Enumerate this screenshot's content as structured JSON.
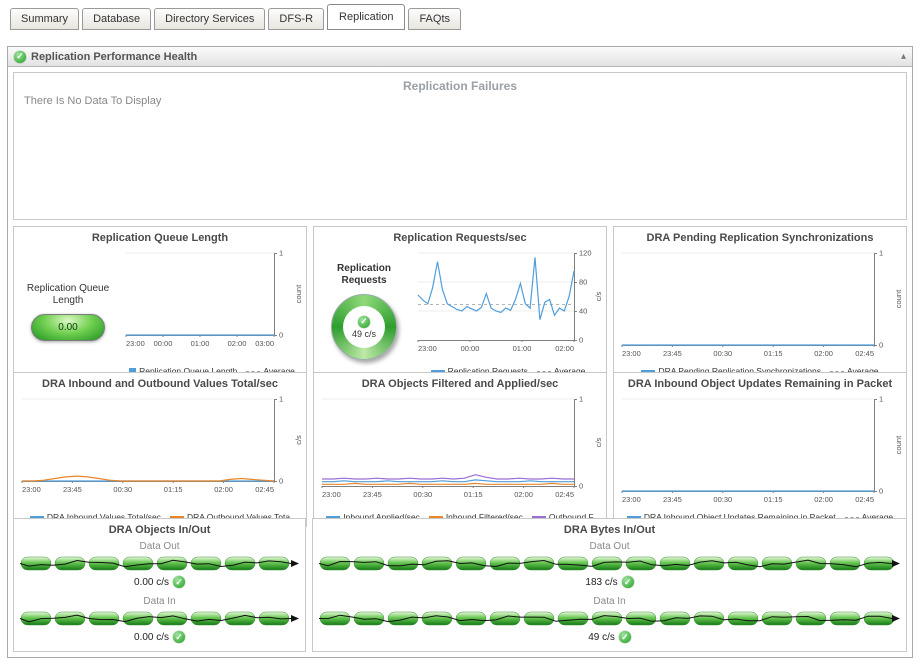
{
  "tabs": [
    {
      "label": "Summary",
      "active": false
    },
    {
      "label": "Database",
      "active": false
    },
    {
      "label": "Directory Services",
      "active": false
    },
    {
      "label": "DFS-R",
      "active": false
    },
    {
      "label": "Replication",
      "active": true
    },
    {
      "label": "FAQts",
      "active": false
    }
  ],
  "panel": {
    "title": "Replication Performance Health",
    "status_icon": "green-check-icon",
    "collapse_icon": "chevron-up",
    "collapse_glyph": "▴"
  },
  "failures": {
    "title": "Replication Failures",
    "empty_text": "There Is No Data To Display"
  },
  "colors": {
    "accent_green": "#2f9e2f",
    "series_blue": "#4f9edb",
    "series_orange": "#e8872a",
    "series_purple": "#9a6dd7",
    "axis_gray": "#808080"
  },
  "charts": [
    {
      "type": "line",
      "title": "Replication Queue Length",
      "gauge": {
        "type": "pill",
        "label": "Replication Queue Length",
        "value": "0.00"
      },
      "ylabel": "count",
      "ylim": [
        0,
        1
      ],
      "yticks": [
        0,
        1
      ],
      "xticks": [
        "23:00",
        "00:00",
        "01:00",
        "02:00",
        "03:00"
      ],
      "avg": 0,
      "series": [
        {
          "name": "Replication Queue Length",
          "color": "#4f9edb",
          "values": [
            0,
            0,
            0,
            0,
            0,
            0,
            0,
            0,
            0,
            0,
            0,
            0
          ]
        }
      ],
      "legend": [
        {
          "label": "Replication Queue Length",
          "color": "#4f9edb",
          "style": "swatch"
        },
        {
          "label": "Average",
          "style": "dashed"
        }
      ]
    },
    {
      "type": "line",
      "title": "Replication Requests/sec",
      "gauge": {
        "type": "ring",
        "label": "Replication Requests",
        "value": "49 c/s"
      },
      "ylabel": "c/s",
      "ylim": [
        0,
        120
      ],
      "yticks": [
        0,
        40,
        80,
        120
      ],
      "xticks": [
        "23:00",
        "00:00",
        "01:00",
        "02:00"
      ],
      "avg": 49,
      "series": [
        {
          "name": "Replication Requests",
          "color": "#4f9edb",
          "values": [
            62,
            55,
            50,
            72,
            108,
            70,
            50,
            46,
            42,
            40,
            46,
            43,
            40,
            45,
            64,
            44,
            40,
            38,
            44,
            41,
            56,
            78,
            50,
            44,
            114,
            28,
            52,
            56,
            34,
            44,
            40,
            60,
            95
          ]
        }
      ],
      "legend": [
        {
          "label": "Replication Requests",
          "color": "#4f9edb",
          "style": "line"
        },
        {
          "label": "Average",
          "style": "dashed"
        }
      ]
    },
    {
      "type": "line",
      "title": "DRA Pending Replication Synchronizations",
      "gauge": null,
      "ylabel": "count",
      "ylim": [
        0,
        1
      ],
      "yticks": [
        0,
        1
      ],
      "xticks": [
        "23:00",
        "23:45",
        "00:30",
        "01:15",
        "02:00",
        "02:45"
      ],
      "avg": 0,
      "series": [
        {
          "name": "DRA Pending Replication Synchronizations",
          "color": "#4f9edb",
          "values": [
            0,
            0,
            0,
            0,
            0,
            0,
            0,
            0,
            0,
            0,
            0,
            0
          ]
        }
      ],
      "legend": [
        {
          "label": "DRA Pending Replication Synchronizations",
          "color": "#4f9edb",
          "style": "line"
        },
        {
          "label": "Average",
          "style": "dashed"
        }
      ]
    },
    {
      "type": "line",
      "title": "DRA Inbound and Outbound Values Total/sec",
      "gauge": null,
      "ylabel": "c/s",
      "ylim": [
        0,
        1
      ],
      "yticks": [
        0,
        1
      ],
      "xticks": [
        "23:00",
        "23:45",
        "00:30",
        "01:15",
        "02:00",
        "02:45"
      ],
      "avg": null,
      "series": [
        {
          "name": "DRA Inbound Values Total/sec",
          "color": "#4f9edb",
          "values": [
            0,
            0,
            0,
            0,
            0,
            0,
            0,
            0,
            0,
            0,
            0,
            0,
            0,
            0,
            0,
            0,
            0,
            0,
            0,
            0,
            0,
            0,
            0,
            0
          ]
        },
        {
          "name": "DRA Outbound Values Total/sec",
          "color": "#e8872a",
          "values": [
            0,
            0,
            0.01,
            0.03,
            0.05,
            0.06,
            0.05,
            0.03,
            0.01,
            0,
            0,
            0,
            0,
            0,
            0,
            0,
            0,
            0,
            0,
            0.02,
            0.03,
            0.02,
            0.01,
            0
          ]
        }
      ],
      "legend": [
        {
          "label": "DRA Inbound Values Total/sec",
          "color": "#4f9edb",
          "style": "line"
        },
        {
          "label": "DRA Outbound Values Tota",
          "color": "#e8872a",
          "style": "line"
        }
      ]
    },
    {
      "type": "line",
      "title": "DRA Objects Filtered and Applied/sec",
      "gauge": null,
      "ylabel": "c/s",
      "ylim": [
        0,
        1
      ],
      "yticks": [
        0,
        1
      ],
      "xticks": [
        "23:00",
        "23:45",
        "00:30",
        "01:15",
        "02:00",
        "02:45"
      ],
      "avg": null,
      "series": [
        {
          "name": "Inbound Applied/sec",
          "color": "#4f9edb",
          "values": [
            0.05,
            0.05,
            0.06,
            0.05,
            0.05,
            0.05,
            0.06,
            0.05,
            0.05,
            0.05,
            0.05,
            0.06,
            0.05,
            0.05,
            0.07,
            0.06,
            0.05,
            0.05,
            0.05,
            0.06,
            0.05,
            0.05,
            0.05,
            0.05
          ]
        },
        {
          "name": "Inbound Filtered/sec",
          "color": "#e8872a",
          "values": [
            0.02,
            0.02,
            0.02,
            0.03,
            0.02,
            0.02,
            0.02,
            0.02,
            0.03,
            0.02,
            0.02,
            0.02,
            0.02,
            0.02,
            0.03,
            0.02,
            0.02,
            0.02,
            0.02,
            0.02,
            0.02,
            0.03,
            0.02,
            0.02
          ]
        },
        {
          "name": "Outbound Filtered/sec",
          "color": "#9a6dd7",
          "values": [
            0.08,
            0.08,
            0.09,
            0.08,
            0.08,
            0.09,
            0.08,
            0.08,
            0.09,
            0.08,
            0.08,
            0.09,
            0.08,
            0.09,
            0.13,
            0.1,
            0.08,
            0.08,
            0.09,
            0.08,
            0.08,
            0.09,
            0.08,
            0.08
          ]
        }
      ],
      "legend": [
        {
          "label": "Inbound Applied/sec",
          "color": "#4f9edb",
          "style": "line"
        },
        {
          "label": "Inbound Filtered/sec",
          "color": "#e8872a",
          "style": "line"
        },
        {
          "label": "Outbound F",
          "color": "#9a6dd7",
          "style": "line"
        }
      ]
    },
    {
      "type": "line",
      "title": "DRA Inbound Object Updates Remaining in Packet",
      "gauge": null,
      "ylabel": "count",
      "ylim": [
        0,
        1
      ],
      "yticks": [
        0,
        1
      ],
      "xticks": [
        "23:00",
        "23:45",
        "00:30",
        "01:15",
        "02:00",
        "02:45"
      ],
      "avg": 0,
      "series": [
        {
          "name": "DRA Inbound Object Updates Remaining in Packet",
          "color": "#4f9edb",
          "values": [
            0,
            0,
            0,
            0,
            0,
            0,
            0,
            0,
            0,
            0,
            0,
            0
          ]
        }
      ],
      "legend": [
        {
          "label": "DRA Inbound Object Updates Remaining in Packet",
          "color": "#4f9edb",
          "style": "line"
        },
        {
          "label": "Average",
          "style": "dashed"
        }
      ]
    }
  ],
  "flows": [
    {
      "title": "DRA Objects In/Out",
      "rows": [
        {
          "label": "Data Out",
          "value": "0.00 c/s",
          "status": "ok"
        },
        {
          "label": "Data In",
          "value": "0.00 c/s",
          "status": "ok"
        }
      ]
    },
    {
      "title": "DRA Bytes In/Out",
      "rows": [
        {
          "label": "Data Out",
          "value": "183 c/s",
          "status": "ok"
        },
        {
          "label": "Data In",
          "value": "49 c/s",
          "status": "ok"
        }
      ]
    }
  ]
}
